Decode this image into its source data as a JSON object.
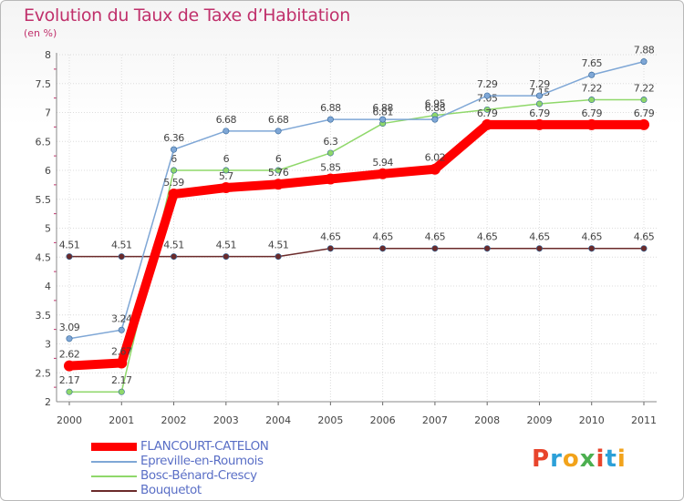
{
  "title": "Evolution du Taux de Taxe d’Habitation",
  "unit_label": "(en %)",
  "logo": {
    "letters": [
      "P",
      "r",
      "o",
      "x",
      "i",
      "t",
      "i"
    ],
    "colors": [
      "#e8452c",
      "#2ca0d8",
      "#f2a31b",
      "#4caf50",
      "#e8452c",
      "#2ca0d8",
      "#f2a31b"
    ]
  },
  "chart_data": {
    "type": "line",
    "x": [
      "2000",
      "2001",
      "2002",
      "2003",
      "2004",
      "2005",
      "2006",
      "2007",
      "2008",
      "2009",
      "2010",
      "2011"
    ],
    "ylim": [
      2,
      8
    ],
    "yticks": [
      "2",
      "2.5",
      "3",
      "3.5",
      "4",
      "4.5",
      "5",
      "5.5",
      "6",
      "6.5",
      "7",
      "7.5",
      "8"
    ],
    "grid": true,
    "series": [
      {
        "name": "Bouquetot",
        "color": "#6b2a2a",
        "width": 1.5,
        "values": [
          4.51,
          4.51,
          4.51,
          4.51,
          4.51,
          4.65,
          4.65,
          4.65,
          4.65,
          4.65,
          4.65,
          4.65
        ],
        "labels": [
          "4.51",
          "4.51",
          "4.51",
          "4.51",
          "4.51",
          "4.65",
          "4.65",
          "4.65",
          "4.65",
          "4.65",
          "4.65",
          "4.65"
        ]
      },
      {
        "name": "Bosc-Bénard-Crescy",
        "color": "#8fd86a",
        "width": 1.5,
        "values": [
          2.17,
          2.17,
          6,
          6,
          6,
          6.3,
          6.81,
          6.95,
          7.05,
          7.15,
          7.22,
          7.22
        ],
        "labels": [
          "2.17",
          "2.17",
          "6",
          "6",
          "6",
          "6.3",
          "6.81",
          "6.95",
          "7.05",
          "7.15",
          "7.22",
          "7.22"
        ]
      },
      {
        "name": "Epreville-en-Roumois",
        "color": "#7fa7d6",
        "width": 1.5,
        "values": [
          3.09,
          3.24,
          6.36,
          6.68,
          6.68,
          6.88,
          6.88,
          6.88,
          7.29,
          7.29,
          7.65,
          7.88
        ],
        "labels": [
          "3.09",
          "3.24",
          "6.36",
          "6.68",
          "6.68",
          "6.88",
          "6.88",
          "6.88",
          "7.29",
          "7.29",
          "7.65",
          "7.88"
        ]
      },
      {
        "name": "FLANCOURT-CATELON",
        "color": "#ff0000",
        "width": 10,
        "values": [
          2.62,
          2.67,
          5.59,
          5.7,
          5.76,
          5.85,
          5.94,
          6.02,
          6.79,
          6.79,
          6.79,
          6.79
        ],
        "labels": [
          "2.62",
          "2.67",
          "5.59",
          "5.7",
          "5.76",
          "5.85",
          "5.94",
          "6.02",
          "6.79",
          "6.79",
          "6.79",
          "6.79"
        ]
      }
    ],
    "legend": [
      {
        "name": "FLANCOURT-CATELON",
        "color": "#ff0000"
      },
      {
        "name": "Epreville-en-Roumois",
        "color": "#7fa7d6"
      },
      {
        "name": "Bosc-Bénard-Crescy",
        "color": "#8fd86a"
      },
      {
        "name": "Bouquetot",
        "color": "#6b2a2a"
      }
    ]
  }
}
